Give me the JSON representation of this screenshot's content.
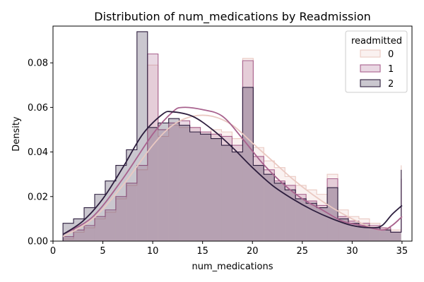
{
  "chart_data": {
    "type": "histogram",
    "title": "Distribution of num_medications by Readmission",
    "xlabel": "num_medications",
    "ylabel": "Density",
    "xlim": [
      0,
      36
    ],
    "ylim": [
      0,
      0.0965
    ],
    "xticks": [
      0,
      5,
      10,
      15,
      20,
      25,
      30,
      35
    ],
    "yticks": [
      0.0,
      0.02,
      0.04,
      0.06,
      0.08
    ],
    "ytick_labels": [
      "0.00",
      "0.02",
      "0.04",
      "0.06",
      "0.08"
    ],
    "bin_edges": [
      1,
      2.06,
      3.12,
      4.18,
      5.24,
      6.3,
      7.36,
      8.42,
      9.48,
      10.54,
      11.6,
      12.66,
      13.72,
      14.78,
      15.84,
      16.9,
      17.96,
      19.02,
      20.08,
      21.14,
      22.2,
      23.26,
      24.32,
      25.38,
      26.44,
      27.5,
      28.56,
      29.62,
      30.68,
      31.74,
      32.8,
      33.86,
      34.92
    ],
    "legend": {
      "title": "readmitted",
      "position": "top-right"
    },
    "series": [
      {
        "name": "0",
        "color": "#eac9c2",
        "densities": [
          0.001,
          0.004,
          0.006,
          0.01,
          0.013,
          0.019,
          0.025,
          0.032,
          0.079,
          0.047,
          0.052,
          0.051,
          0.051,
          0.049,
          0.05,
          0.049,
          0.046,
          0.082,
          0.042,
          0.036,
          0.033,
          0.029,
          0.025,
          0.023,
          0.021,
          0.03,
          0.014,
          0.011,
          0.01,
          0.008,
          0.006,
          0.005,
          0.034
        ],
        "kde": [
          [
            1,
            0.002
          ],
          [
            4,
            0.01
          ],
          [
            7,
            0.025
          ],
          [
            10,
            0.043
          ],
          [
            12,
            0.052
          ],
          [
            14,
            0.056
          ],
          [
            16,
            0.056
          ],
          [
            18,
            0.052
          ],
          [
            20,
            0.044
          ],
          [
            22,
            0.036
          ],
          [
            24,
            0.028
          ],
          [
            26,
            0.021
          ],
          [
            28,
            0.015
          ],
          [
            30,
            0.01
          ],
          [
            32,
            0.006
          ],
          [
            33,
            0.005
          ],
          [
            34,
            0.007
          ],
          [
            35,
            0.011
          ]
        ]
      },
      {
        "name": "1",
        "color": "#a8628e",
        "densities": [
          0.002,
          0.005,
          0.007,
          0.011,
          0.014,
          0.02,
          0.026,
          0.034,
          0.084,
          0.05,
          0.053,
          0.054,
          0.051,
          0.049,
          0.048,
          0.047,
          0.043,
          0.081,
          0.038,
          0.032,
          0.027,
          0.025,
          0.021,
          0.018,
          0.016,
          0.028,
          0.011,
          0.009,
          0.008,
          0.007,
          0.006,
          0.004,
          0.028
        ],
        "kde": [
          [
            1,
            0.003
          ],
          [
            4,
            0.011
          ],
          [
            7,
            0.028
          ],
          [
            10,
            0.048
          ],
          [
            12,
            0.058
          ],
          [
            13,
            0.06
          ],
          [
            15,
            0.059
          ],
          [
            17,
            0.056
          ],
          [
            19,
            0.046
          ],
          [
            21,
            0.035
          ],
          [
            23,
            0.026
          ],
          [
            25,
            0.019
          ],
          [
            27,
            0.014
          ],
          [
            29,
            0.009
          ],
          [
            31,
            0.007
          ],
          [
            33,
            0.005
          ],
          [
            34,
            0.007
          ],
          [
            35,
            0.011
          ]
        ]
      },
      {
        "name": "2",
        "color": "#2d1e3e",
        "densities": [
          0.008,
          0.01,
          0.015,
          0.021,
          0.027,
          0.034,
          0.041,
          0.094,
          0.051,
          0.053,
          0.055,
          0.052,
          0.049,
          0.048,
          0.046,
          0.043,
          0.04,
          0.069,
          0.034,
          0.03,
          0.026,
          0.023,
          0.019,
          0.017,
          0.015,
          0.024,
          0.01,
          0.008,
          0.007,
          0.006,
          0.005,
          0.004,
          0.032
        ],
        "kde": [
          [
            1,
            0.003
          ],
          [
            3,
            0.009
          ],
          [
            5,
            0.019
          ],
          [
            7,
            0.033
          ],
          [
            9,
            0.048
          ],
          [
            11,
            0.057
          ],
          [
            12,
            0.058
          ],
          [
            14,
            0.056
          ],
          [
            16,
            0.05
          ],
          [
            18,
            0.042
          ],
          [
            20,
            0.033
          ],
          [
            22,
            0.025
          ],
          [
            24,
            0.019
          ],
          [
            26,
            0.014
          ],
          [
            28,
            0.01
          ],
          [
            30,
            0.007
          ],
          [
            32,
            0.006
          ],
          [
            33,
            0.007
          ],
          [
            34,
            0.012
          ],
          [
            35,
            0.016
          ]
        ]
      }
    ]
  }
}
